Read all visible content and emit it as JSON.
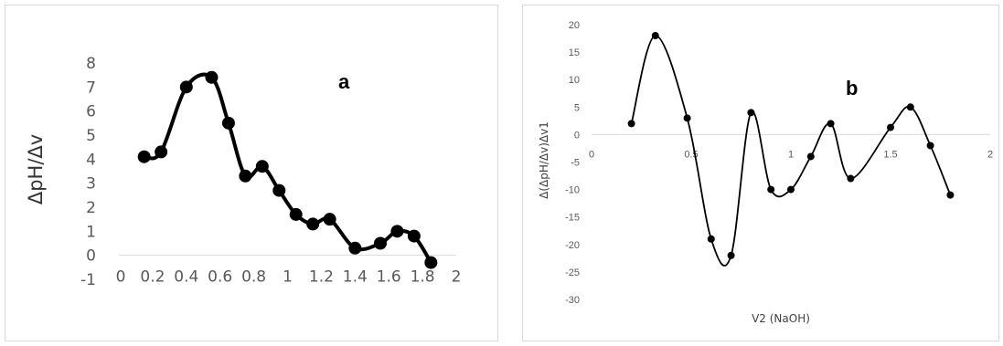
{
  "chart_data": [
    {
      "type": "line",
      "panel_label": "a",
      "title": "",
      "xlabel": "",
      "ylabel": "ΔpH/Δv",
      "xlim": [
        0,
        2
      ],
      "ylim": [
        -1,
        8
      ],
      "x_ticks": [
        "0",
        "0.2",
        "0.4",
        "0.6",
        "0.8",
        "1",
        "1.2",
        "1.4",
        "1.6",
        "1.8",
        "2"
      ],
      "y_ticks": [
        "-1",
        "0",
        "1",
        "2",
        "3",
        "4",
        "5",
        "6",
        "7",
        "8"
      ],
      "grid": false,
      "series": [
        {
          "x": [
            0.15,
            0.25,
            0.4,
            0.55,
            0.65,
            0.75,
            0.85,
            0.95,
            1.05,
            1.15,
            1.25,
            1.4,
            1.55,
            1.65,
            1.75,
            1.85
          ],
          "y": [
            4.1,
            4.3,
            7.0,
            7.4,
            5.5,
            3.3,
            3.7,
            2.7,
            1.7,
            1.3,
            1.5,
            0.3,
            0.5,
            1.0,
            0.8,
            -0.3
          ]
        }
      ],
      "color": "#000000"
    },
    {
      "type": "line",
      "panel_label": "b",
      "title": "",
      "xlabel": "V2 (NaOH)",
      "ylabel": "Δ(ΔpH/Δv)Δv1",
      "xlim": [
        0,
        2
      ],
      "ylim": [
        -30,
        20
      ],
      "x_ticks": [
        "0",
        "0.5",
        "1",
        "1.5",
        "2"
      ],
      "y_ticks": [
        "20",
        "15",
        "10",
        "5",
        "0",
        "-5",
        "-10",
        "-15",
        "-20",
        "-25",
        "-30"
      ],
      "grid": false,
      "series": [
        {
          "x": [
            0.2,
            0.32,
            0.48,
            0.6,
            0.7,
            0.8,
            0.9,
            1.0,
            1.1,
            1.2,
            1.3,
            1.5,
            1.6,
            1.7,
            1.8
          ],
          "y": [
            2,
            18,
            3,
            -19,
            -22,
            4,
            -10,
            -10,
            -4,
            2,
            -8,
            1.3,
            5,
            -2,
            -11
          ]
        }
      ],
      "color": "#000000"
    }
  ]
}
